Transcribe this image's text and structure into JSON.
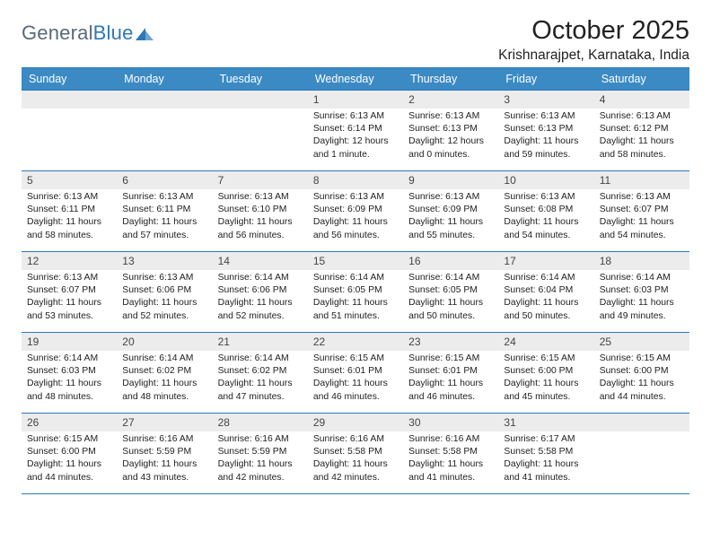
{
  "logo": {
    "text_1": "General",
    "text_2": "Blue"
  },
  "title": {
    "month": "October 2025",
    "location": "Krishnarajpet, Karnataka, India"
  },
  "colors": {
    "header_bar": "#3b8ac4",
    "rule": "#2f78b8",
    "datebar_bg": "#ececec",
    "logo_gray": "#5a6a78",
    "logo_blue": "#2f78b8"
  },
  "weekdays": [
    "Sunday",
    "Monday",
    "Tuesday",
    "Wednesday",
    "Thursday",
    "Friday",
    "Saturday"
  ],
  "weeks": [
    [
      {
        "date": "",
        "lines": [
          "",
          "",
          "",
          ""
        ]
      },
      {
        "date": "",
        "lines": [
          "",
          "",
          "",
          ""
        ]
      },
      {
        "date": "",
        "lines": [
          "",
          "",
          "",
          ""
        ]
      },
      {
        "date": "1",
        "lines": [
          "Sunrise: 6:13 AM",
          "Sunset: 6:14 PM",
          "Daylight: 12 hours",
          "and 1 minute."
        ]
      },
      {
        "date": "2",
        "lines": [
          "Sunrise: 6:13 AM",
          "Sunset: 6:13 PM",
          "Daylight: 12 hours",
          "and 0 minutes."
        ]
      },
      {
        "date": "3",
        "lines": [
          "Sunrise: 6:13 AM",
          "Sunset: 6:13 PM",
          "Daylight: 11 hours",
          "and 59 minutes."
        ]
      },
      {
        "date": "4",
        "lines": [
          "Sunrise: 6:13 AM",
          "Sunset: 6:12 PM",
          "Daylight: 11 hours",
          "and 58 minutes."
        ]
      }
    ],
    [
      {
        "date": "5",
        "lines": [
          "Sunrise: 6:13 AM",
          "Sunset: 6:11 PM",
          "Daylight: 11 hours",
          "and 58 minutes."
        ]
      },
      {
        "date": "6",
        "lines": [
          "Sunrise: 6:13 AM",
          "Sunset: 6:11 PM",
          "Daylight: 11 hours",
          "and 57 minutes."
        ]
      },
      {
        "date": "7",
        "lines": [
          "Sunrise: 6:13 AM",
          "Sunset: 6:10 PM",
          "Daylight: 11 hours",
          "and 56 minutes."
        ]
      },
      {
        "date": "8",
        "lines": [
          "Sunrise: 6:13 AM",
          "Sunset: 6:09 PM",
          "Daylight: 11 hours",
          "and 56 minutes."
        ]
      },
      {
        "date": "9",
        "lines": [
          "Sunrise: 6:13 AM",
          "Sunset: 6:09 PM",
          "Daylight: 11 hours",
          "and 55 minutes."
        ]
      },
      {
        "date": "10",
        "lines": [
          "Sunrise: 6:13 AM",
          "Sunset: 6:08 PM",
          "Daylight: 11 hours",
          "and 54 minutes."
        ]
      },
      {
        "date": "11",
        "lines": [
          "Sunrise: 6:13 AM",
          "Sunset: 6:07 PM",
          "Daylight: 11 hours",
          "and 54 minutes."
        ]
      }
    ],
    [
      {
        "date": "12",
        "lines": [
          "Sunrise: 6:13 AM",
          "Sunset: 6:07 PM",
          "Daylight: 11 hours",
          "and 53 minutes."
        ]
      },
      {
        "date": "13",
        "lines": [
          "Sunrise: 6:13 AM",
          "Sunset: 6:06 PM",
          "Daylight: 11 hours",
          "and 52 minutes."
        ]
      },
      {
        "date": "14",
        "lines": [
          "Sunrise: 6:14 AM",
          "Sunset: 6:06 PM",
          "Daylight: 11 hours",
          "and 52 minutes."
        ]
      },
      {
        "date": "15",
        "lines": [
          "Sunrise: 6:14 AM",
          "Sunset: 6:05 PM",
          "Daylight: 11 hours",
          "and 51 minutes."
        ]
      },
      {
        "date": "16",
        "lines": [
          "Sunrise: 6:14 AM",
          "Sunset: 6:05 PM",
          "Daylight: 11 hours",
          "and 50 minutes."
        ]
      },
      {
        "date": "17",
        "lines": [
          "Sunrise: 6:14 AM",
          "Sunset: 6:04 PM",
          "Daylight: 11 hours",
          "and 50 minutes."
        ]
      },
      {
        "date": "18",
        "lines": [
          "Sunrise: 6:14 AM",
          "Sunset: 6:03 PM",
          "Daylight: 11 hours",
          "and 49 minutes."
        ]
      }
    ],
    [
      {
        "date": "19",
        "lines": [
          "Sunrise: 6:14 AM",
          "Sunset: 6:03 PM",
          "Daylight: 11 hours",
          "and 48 minutes."
        ]
      },
      {
        "date": "20",
        "lines": [
          "Sunrise: 6:14 AM",
          "Sunset: 6:02 PM",
          "Daylight: 11 hours",
          "and 48 minutes."
        ]
      },
      {
        "date": "21",
        "lines": [
          "Sunrise: 6:14 AM",
          "Sunset: 6:02 PM",
          "Daylight: 11 hours",
          "and 47 minutes."
        ]
      },
      {
        "date": "22",
        "lines": [
          "Sunrise: 6:15 AM",
          "Sunset: 6:01 PM",
          "Daylight: 11 hours",
          "and 46 minutes."
        ]
      },
      {
        "date": "23",
        "lines": [
          "Sunrise: 6:15 AM",
          "Sunset: 6:01 PM",
          "Daylight: 11 hours",
          "and 46 minutes."
        ]
      },
      {
        "date": "24",
        "lines": [
          "Sunrise: 6:15 AM",
          "Sunset: 6:00 PM",
          "Daylight: 11 hours",
          "and 45 minutes."
        ]
      },
      {
        "date": "25",
        "lines": [
          "Sunrise: 6:15 AM",
          "Sunset: 6:00 PM",
          "Daylight: 11 hours",
          "and 44 minutes."
        ]
      }
    ],
    [
      {
        "date": "26",
        "lines": [
          "Sunrise: 6:15 AM",
          "Sunset: 6:00 PM",
          "Daylight: 11 hours",
          "and 44 minutes."
        ]
      },
      {
        "date": "27",
        "lines": [
          "Sunrise: 6:16 AM",
          "Sunset: 5:59 PM",
          "Daylight: 11 hours",
          "and 43 minutes."
        ]
      },
      {
        "date": "28",
        "lines": [
          "Sunrise: 6:16 AM",
          "Sunset: 5:59 PM",
          "Daylight: 11 hours",
          "and 42 minutes."
        ]
      },
      {
        "date": "29",
        "lines": [
          "Sunrise: 6:16 AM",
          "Sunset: 5:58 PM",
          "Daylight: 11 hours",
          "and 42 minutes."
        ]
      },
      {
        "date": "30",
        "lines": [
          "Sunrise: 6:16 AM",
          "Sunset: 5:58 PM",
          "Daylight: 11 hours",
          "and 41 minutes."
        ]
      },
      {
        "date": "31",
        "lines": [
          "Sunrise: 6:17 AM",
          "Sunset: 5:58 PM",
          "Daylight: 11 hours",
          "and 41 minutes."
        ]
      },
      {
        "date": "",
        "lines": [
          "",
          "",
          "",
          ""
        ]
      }
    ]
  ]
}
